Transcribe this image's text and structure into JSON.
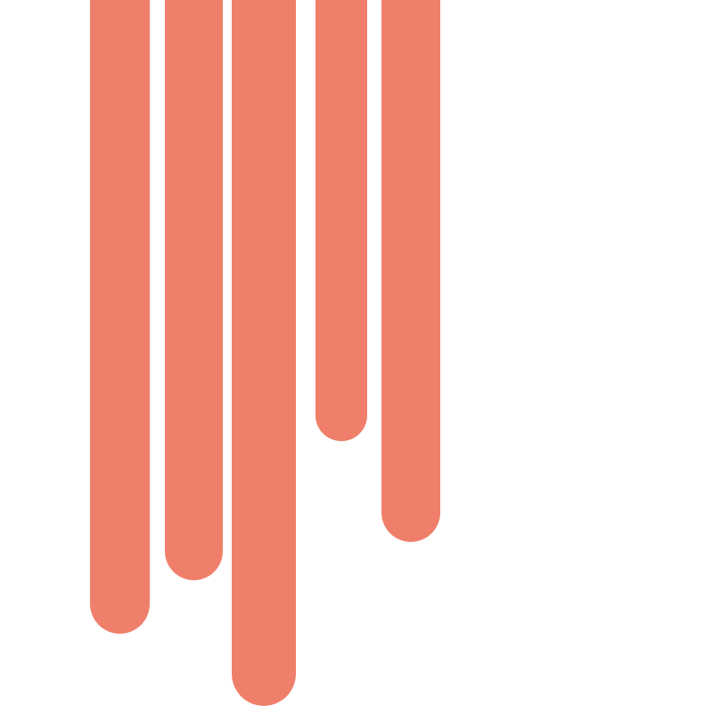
{
  "graphic": {
    "description_name": "coral-drips",
    "color": "#ef7f6a",
    "background": "#ffffff",
    "drip_count": 5
  }
}
